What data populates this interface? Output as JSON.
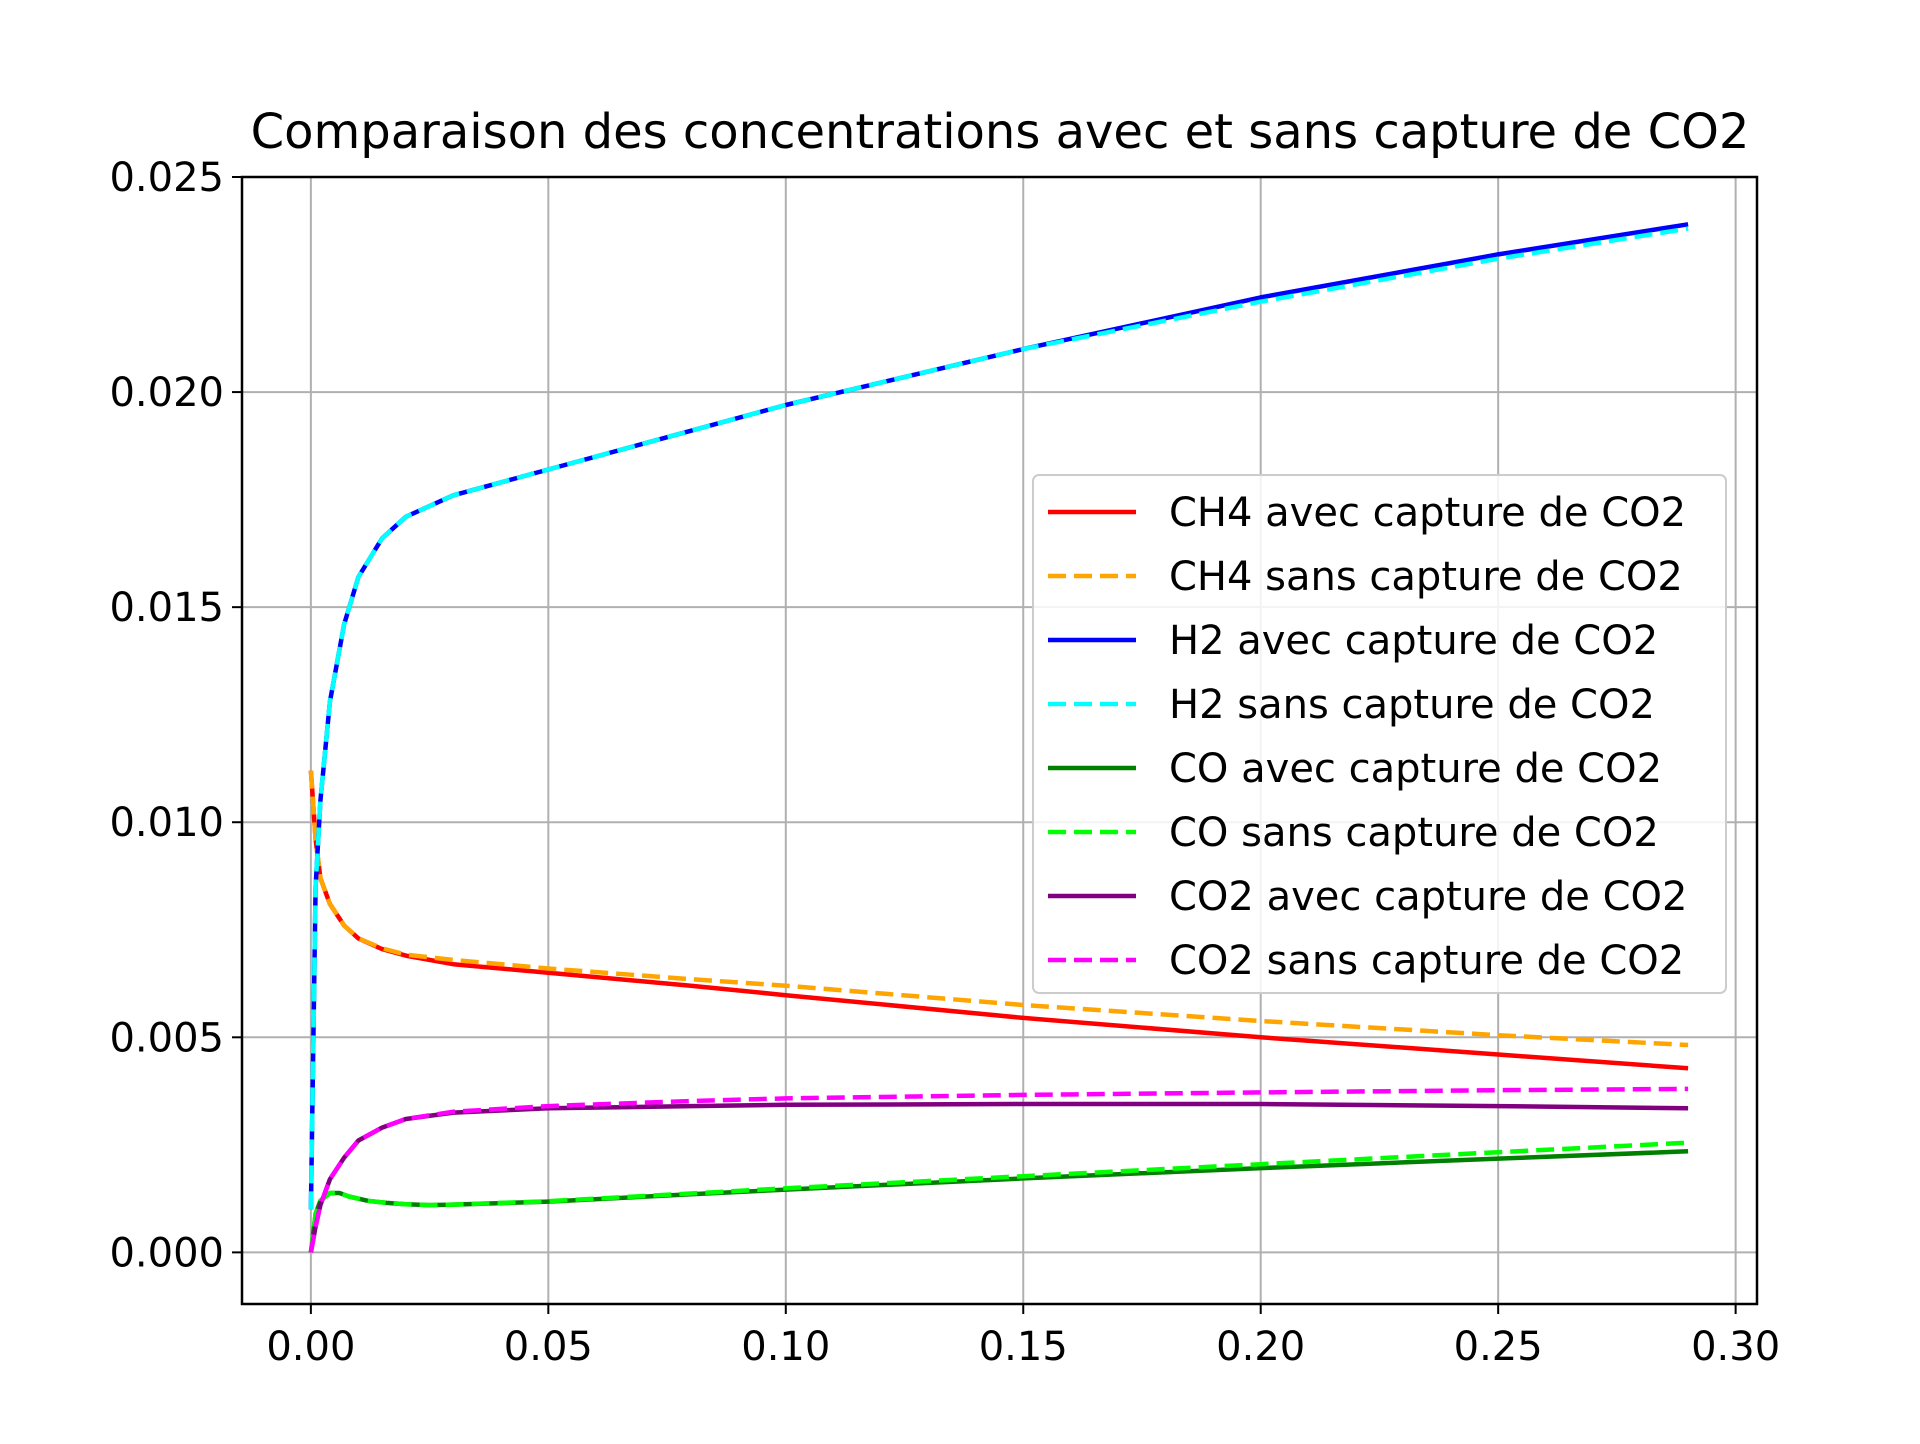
{
  "chart_data": {
    "type": "line",
    "title": "Comparaison des concentrations avec et sans capture de CO2",
    "xlabel": "",
    "ylabel": "",
    "xlim": [
      -0.0145,
      0.3045
    ],
    "ylim": [
      -0.0012,
      0.025
    ],
    "xticks": [
      "0.00",
      "0.05",
      "0.10",
      "0.15",
      "0.20",
      "0.25",
      "0.30"
    ],
    "yticks": [
      "0.000",
      "0.005",
      "0.010",
      "0.015",
      "0.020",
      "0.025"
    ],
    "grid": true,
    "legend_position": "center-right",
    "series": [
      {
        "name": "CH4 avec capture de CO2",
        "color": "#ff0000",
        "dash": "solid",
        "x": [
          0,
          0.001,
          0.002,
          0.004,
          0.007,
          0.01,
          0.015,
          0.02,
          0.03,
          0.05,
          0.08,
          0.1,
          0.15,
          0.2,
          0.25,
          0.29
        ],
        "y": [
          0.0112,
          0.0096,
          0.0087,
          0.0081,
          0.0076,
          0.0073,
          0.00705,
          0.0069,
          0.0067,
          0.0065,
          0.0062,
          0.00598,
          0.00545,
          0.005,
          0.0046,
          0.00428
        ]
      },
      {
        "name": "CH4 sans capture de CO2",
        "color": "#ffa500",
        "dash": "dashed",
        "x": [
          0,
          0.001,
          0.002,
          0.004,
          0.007,
          0.01,
          0.015,
          0.02,
          0.03,
          0.05,
          0.08,
          0.1,
          0.15,
          0.2,
          0.25,
          0.29
        ],
        "y": [
          0.0112,
          0.0096,
          0.0087,
          0.0081,
          0.0076,
          0.0073,
          0.00707,
          0.00692,
          0.0068,
          0.0066,
          0.00635,
          0.0062,
          0.00575,
          0.00538,
          0.00505,
          0.00482
        ]
      },
      {
        "name": "H2 avec capture de CO2",
        "color": "#0000ff",
        "dash": "solid",
        "x": [
          0,
          0.001,
          0.002,
          0.004,
          0.007,
          0.01,
          0.015,
          0.02,
          0.03,
          0.04,
          0.05,
          0.07,
          0.1,
          0.15,
          0.2,
          0.25,
          0.29
        ],
        "y": [
          0.001,
          0.0085,
          0.0105,
          0.0128,
          0.0146,
          0.0157,
          0.0166,
          0.0171,
          0.0176,
          0.0179,
          0.0182,
          0.0188,
          0.0197,
          0.021,
          0.0222,
          0.0232,
          0.0239
        ]
      },
      {
        "name": "H2 sans capture de CO2",
        "color": "#00ffff",
        "dash": "dashed",
        "x": [
          0,
          0.001,
          0.002,
          0.004,
          0.007,
          0.01,
          0.015,
          0.02,
          0.03,
          0.04,
          0.05,
          0.07,
          0.1,
          0.15,
          0.2,
          0.25,
          0.29
        ],
        "y": [
          0.001,
          0.0085,
          0.0105,
          0.0128,
          0.0146,
          0.0157,
          0.0166,
          0.0171,
          0.0176,
          0.0179,
          0.0182,
          0.0188,
          0.0197,
          0.021,
          0.0221,
          0.0231,
          0.0238
        ]
      },
      {
        "name": "CO avec capture de CO2",
        "color": "#008000",
        "dash": "solid",
        "x": [
          0,
          0.001,
          0.002,
          0.004,
          0.006,
          0.008,
          0.012,
          0.016,
          0.02,
          0.025,
          0.03,
          0.05,
          0.08,
          0.1,
          0.15,
          0.2,
          0.25,
          0.29
        ],
        "y": [
          0,
          0.0009,
          0.0012,
          0.00138,
          0.00138,
          0.0013,
          0.0012,
          0.00115,
          0.00112,
          0.0011,
          0.00111,
          0.00118,
          0.00135,
          0.00146,
          0.00172,
          0.00196,
          0.00218,
          0.00235
        ]
      },
      {
        "name": "CO sans capture de CO2",
        "color": "#00ff00",
        "dash": "dashed",
        "x": [
          0,
          0.001,
          0.002,
          0.004,
          0.006,
          0.008,
          0.012,
          0.016,
          0.02,
          0.025,
          0.03,
          0.05,
          0.08,
          0.1,
          0.15,
          0.2,
          0.25,
          0.29
        ],
        "y": [
          0,
          0.0009,
          0.0012,
          0.00138,
          0.00138,
          0.0013,
          0.0012,
          0.00115,
          0.00112,
          0.0011,
          0.00111,
          0.00119,
          0.00137,
          0.00149,
          0.00177,
          0.00205,
          0.00233,
          0.00255
        ]
      },
      {
        "name": "CO2 avec capture de CO2",
        "color": "#800080",
        "dash": "solid",
        "x": [
          0,
          0.001,
          0.002,
          0.004,
          0.007,
          0.01,
          0.015,
          0.02,
          0.03,
          0.05,
          0.08,
          0.1,
          0.15,
          0.2,
          0.25,
          0.29
        ],
        "y": [
          0,
          0.0006,
          0.0011,
          0.0017,
          0.0022,
          0.0026,
          0.0029,
          0.0031,
          0.00325,
          0.00335,
          0.0034,
          0.00343,
          0.00345,
          0.00345,
          0.0034,
          0.00335
        ]
      },
      {
        "name": "CO2 sans capture de CO2",
        "color": "#ff00ff",
        "dash": "dashed",
        "x": [
          0,
          0.001,
          0.002,
          0.004,
          0.007,
          0.01,
          0.015,
          0.02,
          0.03,
          0.05,
          0.08,
          0.1,
          0.15,
          0.2,
          0.25,
          0.29
        ],
        "y": [
          0,
          0.0006,
          0.0011,
          0.0017,
          0.0022,
          0.0026,
          0.0029,
          0.0031,
          0.00327,
          0.0034,
          0.00352,
          0.00358,
          0.00366,
          0.00372,
          0.00377,
          0.0038
        ]
      }
    ]
  }
}
